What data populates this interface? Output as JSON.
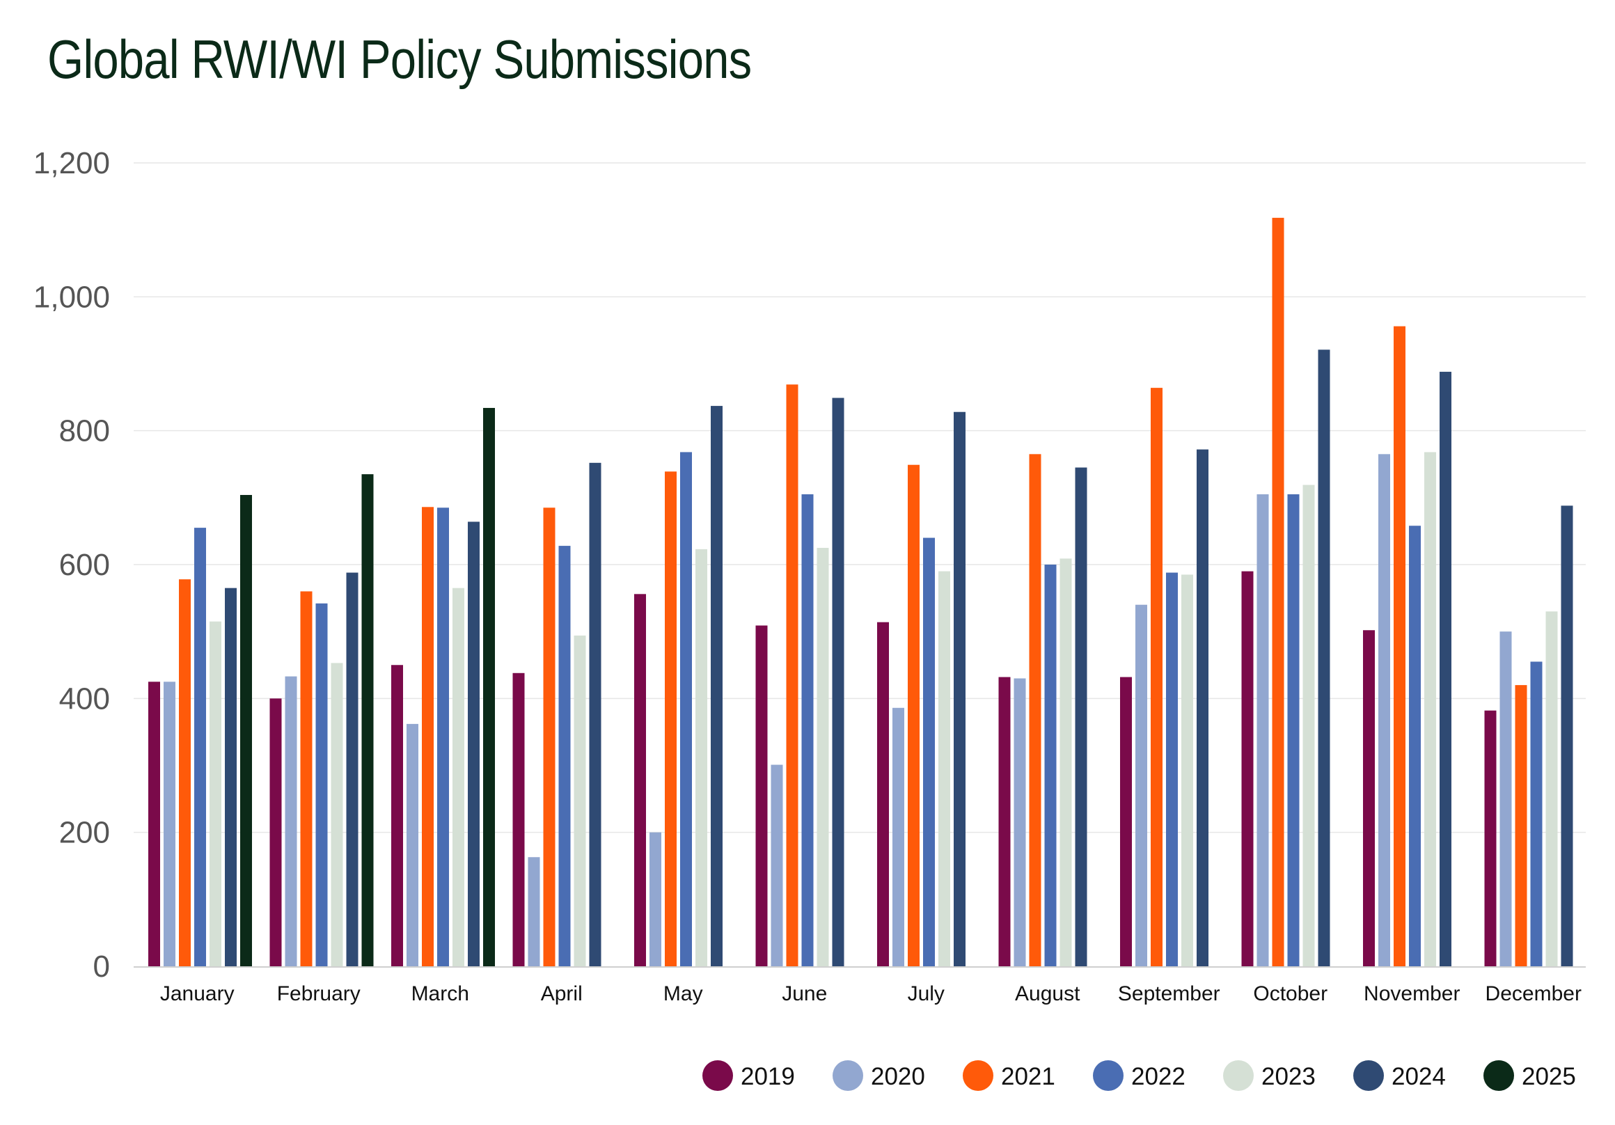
{
  "chart_data": {
    "type": "bar",
    "title": "Global RWI/WI Policy Submissions",
    "xlabel": "",
    "ylabel": "",
    "ylim": [
      0,
      1200
    ],
    "yticks": [
      0,
      200,
      400,
      600,
      800,
      1000,
      1200
    ],
    "ytick_labels": [
      "0",
      "200",
      "400",
      "600",
      "800",
      "1,000",
      "1,200"
    ],
    "grid": true,
    "legend_position": "bottom-right",
    "categories": [
      "January",
      "February",
      "March",
      "April",
      "May",
      "June",
      "July",
      "August",
      "September",
      "October",
      "November",
      "December"
    ],
    "series": [
      {
        "name": "2019",
        "color": "#7a0a4a",
        "values": [
          425,
          400,
          450,
          438,
          556,
          509,
          514,
          432,
          432,
          590,
          502,
          382
        ]
      },
      {
        "name": "2020",
        "color": "#92a7d0",
        "values": [
          425,
          433,
          362,
          163,
          200,
          301,
          386,
          430,
          540,
          705,
          765,
          500
        ]
      },
      {
        "name": "2021",
        "color": "#ff5a0a",
        "values": [
          578,
          560,
          686,
          685,
          739,
          869,
          749,
          765,
          864,
          1118,
          956,
          420
        ]
      },
      {
        "name": "2022",
        "color": "#4a6db3",
        "values": [
          655,
          542,
          685,
          628,
          768,
          705,
          640,
          600,
          588,
          705,
          658,
          455
        ]
      },
      {
        "name": "2023",
        "color": "#d5e0d5",
        "values": [
          515,
          453,
          565,
          494,
          623,
          625,
          590,
          609,
          585,
          719,
          768,
          530
        ]
      },
      {
        "name": "2024",
        "color": "#2f4a73",
        "values": [
          565,
          588,
          664,
          752,
          837,
          849,
          828,
          745,
          772,
          921,
          888,
          688
        ]
      },
      {
        "name": "2025",
        "color": "#0b2a18",
        "values": [
          704,
          735,
          834,
          null,
          null,
          null,
          null,
          null,
          null,
          null,
          null,
          null
        ]
      }
    ]
  }
}
